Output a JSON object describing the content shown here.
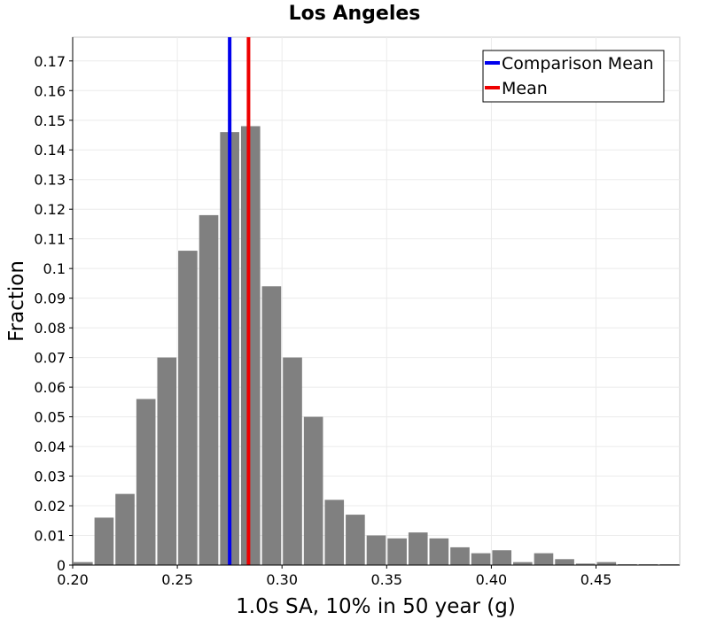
{
  "chart_data": {
    "type": "bar",
    "title": "Los Angeles",
    "xlabel": "1.0s SA, 10% in 50 year (g)",
    "ylabel": "Fraction",
    "xlim": [
      0.2,
      0.49
    ],
    "ylim": [
      0,
      0.178
    ],
    "grid": true,
    "legend_position": "top-right",
    "x_ticks": [
      0.2,
      0.25,
      0.3,
      0.35,
      0.4,
      0.45
    ],
    "x_tick_labels": [
      "0.20",
      "0.25",
      "0.30",
      "0.35",
      "0.40",
      "0.45"
    ],
    "y_ticks": [
      0,
      0.01,
      0.02,
      0.03,
      0.04,
      0.05,
      0.06,
      0.07,
      0.08,
      0.09,
      0.1,
      0.11,
      0.12,
      0.13,
      0.14,
      0.15,
      0.16,
      0.17
    ],
    "y_tick_labels": [
      "0",
      "0.01",
      "0.02",
      "0.03",
      "0.04",
      "0.05",
      "0.06",
      "0.07",
      "0.08",
      "0.09",
      "0.1",
      "0.11",
      "0.12",
      "0.13",
      "0.14",
      "0.15",
      "0.16",
      "0.17"
    ],
    "bin_width": 0.01,
    "bar_color": "#808080",
    "bins": [
      {
        "x": 0.2,
        "value": 0.001
      },
      {
        "x": 0.21,
        "value": 0.016
      },
      {
        "x": 0.22,
        "value": 0.024
      },
      {
        "x": 0.23,
        "value": 0.056
      },
      {
        "x": 0.24,
        "value": 0.07
      },
      {
        "x": 0.25,
        "value": 0.106
      },
      {
        "x": 0.26,
        "value": 0.118
      },
      {
        "x": 0.27,
        "value": 0.146
      },
      {
        "x": 0.28,
        "value": 0.148
      },
      {
        "x": 0.29,
        "value": 0.094
      },
      {
        "x": 0.3,
        "value": 0.07
      },
      {
        "x": 0.31,
        "value": 0.05
      },
      {
        "x": 0.32,
        "value": 0.022
      },
      {
        "x": 0.33,
        "value": 0.017
      },
      {
        "x": 0.34,
        "value": 0.01
      },
      {
        "x": 0.35,
        "value": 0.009
      },
      {
        "x": 0.36,
        "value": 0.011
      },
      {
        "x": 0.37,
        "value": 0.009
      },
      {
        "x": 0.38,
        "value": 0.006
      },
      {
        "x": 0.39,
        "value": 0.004
      },
      {
        "x": 0.4,
        "value": 0.005
      },
      {
        "x": 0.41,
        "value": 0.001
      },
      {
        "x": 0.42,
        "value": 0.004
      },
      {
        "x": 0.43,
        "value": 0.002
      },
      {
        "x": 0.44,
        "value": 0.0005
      },
      {
        "x": 0.45,
        "value": 0.001
      },
      {
        "x": 0.46,
        "value": 0.0003
      },
      {
        "x": 0.47,
        "value": 0.0003
      },
      {
        "x": 0.48,
        "value": 0.0003
      }
    ],
    "series": [
      {
        "name": "Comparison Mean",
        "type": "vline",
        "x": 0.275,
        "color": "#0000ee"
      },
      {
        "name": "Mean",
        "type": "vline",
        "x": 0.284,
        "color": "#ee0000"
      }
    ]
  }
}
